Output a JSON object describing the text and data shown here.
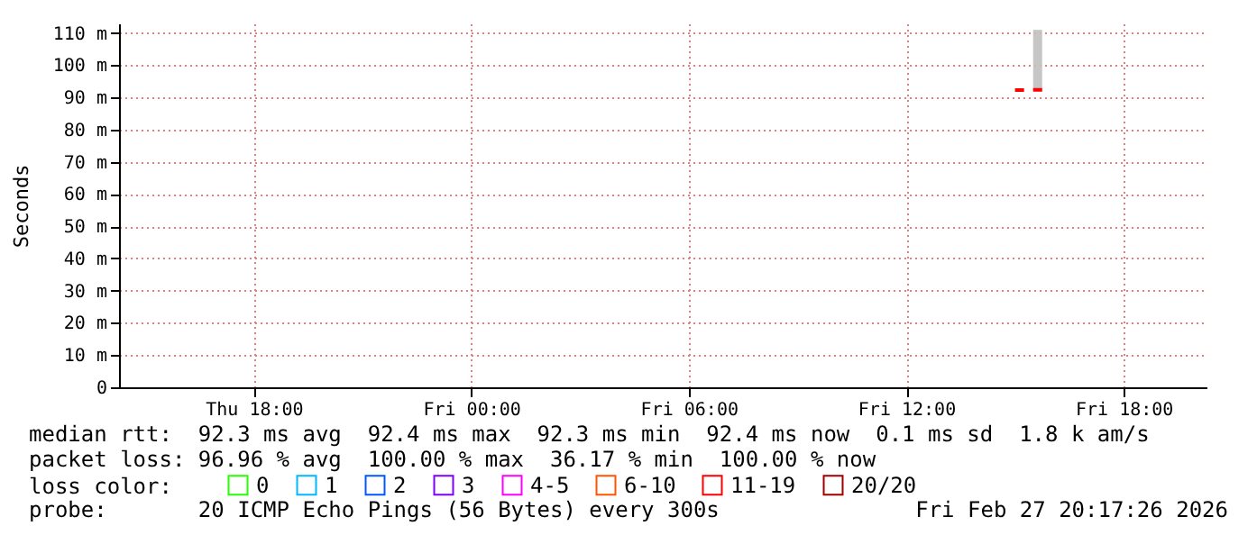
{
  "chart_data": {
    "type": "line",
    "ylabel": "Seconds",
    "x": [
      "2026-02-27T15:00",
      "2026-02-27T15:15",
      "2026-02-27T15:20",
      "2026-02-27T15:30",
      "2026-02-27T15:45"
    ],
    "series": [
      {
        "name": "0",
        "color": "#26ff00",
        "values": [
          null,
          null,
          null,
          null,
          null
        ]
      },
      {
        "name": "1",
        "color": "#00b8ff",
        "values": [
          null,
          null,
          null,
          null,
          null
        ]
      },
      {
        "name": "2",
        "color": "#0059ff",
        "values": [
          null,
          null,
          null,
          null,
          null
        ]
      },
      {
        "name": "3",
        "color": "#7e00ff",
        "values": [
          null,
          null,
          null,
          null,
          null
        ]
      },
      {
        "name": "4-5",
        "color": "#ff00ff",
        "values": [
          null,
          null,
          null,
          null,
          null
        ]
      },
      {
        "name": "6-10",
        "color": "#ff5500",
        "values": [
          null,
          null,
          null,
          null,
          null
        ]
      },
      {
        "name": "11-19",
        "color": "#ff0000",
        "values": [
          92.3,
          92.3,
          null,
          92.4,
          92.4
        ],
        "lower": [
          null,
          null,
          null,
          92.3,
          92.3
        ],
        "upper": [
          null,
          null,
          null,
          111,
          111
        ]
      },
      {
        "name": "20/20",
        "color": "#a10000",
        "values": [
          null,
          null,
          null,
          null,
          null
        ]
      }
    ],
    "legend_title": "loss color:",
    "legend": "bottom left",
    "xlim": [
      "2026-02-26T14:17",
      "2026-02-27T20:17"
    ],
    "xticks": [
      {
        "value": "2026-02-26T18:00",
        "label": "Thu 18:00"
      },
      {
        "value": "2026-02-27T00:00",
        "label": "Fri 00:00"
      },
      {
        "value": "2026-02-27T06:00",
        "label": "Fri 06:00"
      },
      {
        "value": "2026-02-27T12:00",
        "label": "Fri 12:00"
      },
      {
        "value": "2026-02-27T18:00",
        "label": "Fri 18:00"
      }
    ],
    "ylim": [
      0,
      113
    ],
    "yticks": [
      0,
      {
        "value": 10,
        "label": "10 m"
      },
      {
        "value": 20,
        "label": "20 m"
      },
      {
        "value": 30,
        "label": "30 m"
      },
      {
        "value": 40,
        "label": "40 m"
      },
      {
        "value": 50,
        "label": "50 m"
      },
      {
        "value": 60,
        "label": "60 m"
      },
      {
        "value": 70,
        "label": "70 m"
      },
      {
        "value": 80,
        "label": "80 m"
      },
      {
        "value": 90,
        "label": "90 m"
      },
      {
        "value": 100,
        "label": "100 m"
      },
      {
        "value": 110,
        "label": "110 m"
      }
    ],
    "grid": true,
    "marker": "none",
    "annotations": [
      "median rtt:  92.3 ms avg  92.4 ms max  92.3 ms min  92.4 ms now  0.1 ms sd  1.8 k am/s",
      "packet loss: 96.96 % avg  100.00 % max  36.17 % min  100.00 % now",
      "probe:       20 ICMP Echo Pings (56 Bytes) every 300s",
      "Fri Feb 27 20:17:26 2026"
    ]
  }
}
